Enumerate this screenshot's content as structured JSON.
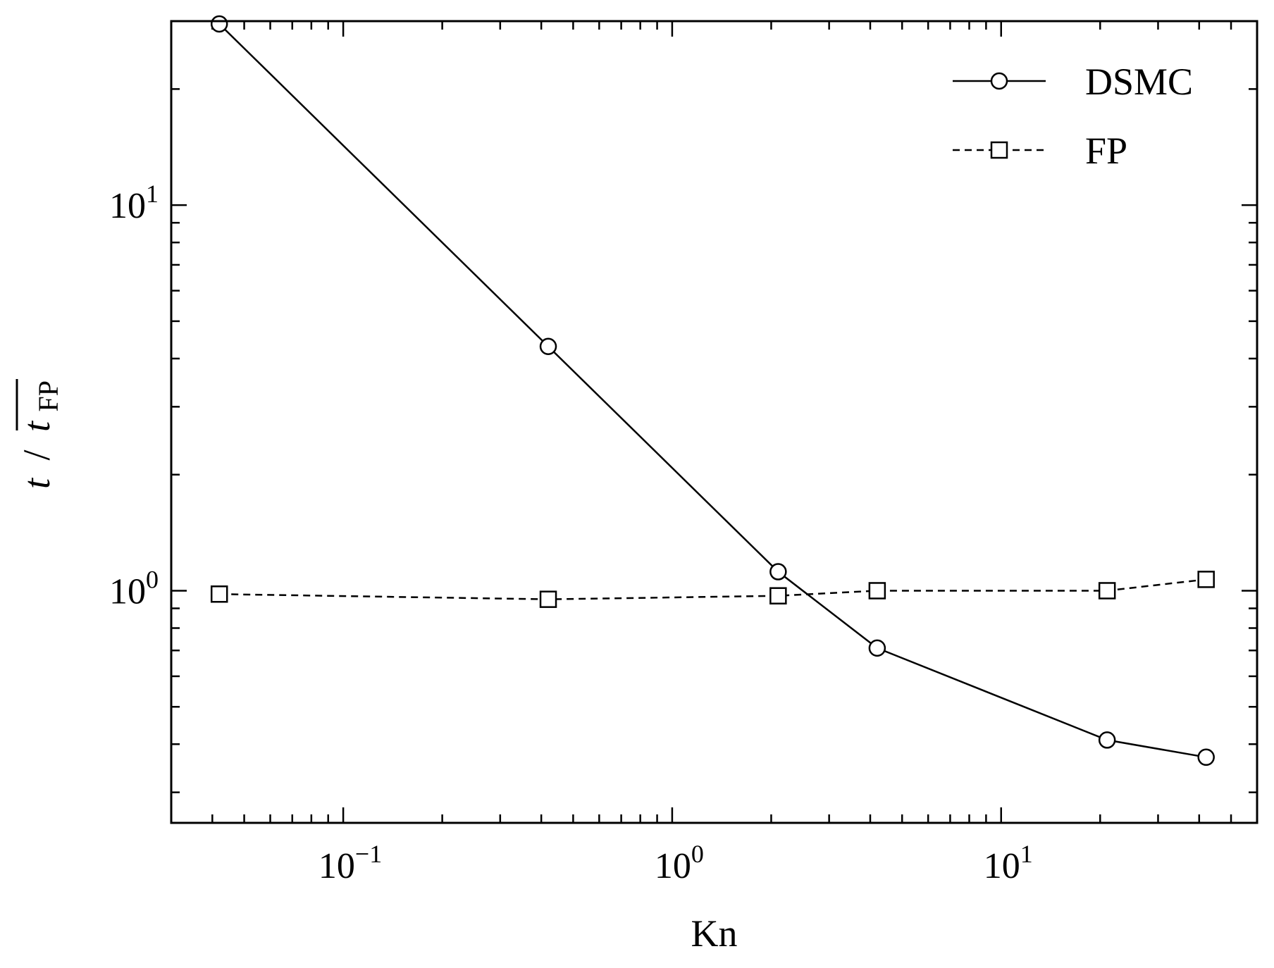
{
  "chart_data": {
    "type": "line",
    "xlabel": "Kn",
    "ylabel": {
      "prefix": "t",
      "separator": "/",
      "base": "t",
      "subscript": "FP"
    },
    "x_scale": "log",
    "y_scale": "log",
    "xlim": [
      0.03,
      60
    ],
    "ylim": [
      0.25,
      30
    ],
    "x_ticks": [
      {
        "value": 0.1,
        "base": "10",
        "exp": "−1"
      },
      {
        "value": 1,
        "base": "10",
        "exp": "0"
      },
      {
        "value": 10,
        "base": "10",
        "exp": "1"
      }
    ],
    "y_ticks": [
      {
        "value": 1,
        "base": "10",
        "exp": "0"
      },
      {
        "value": 10,
        "base": "10",
        "exp": "1"
      }
    ],
    "grid": false,
    "legend_position": "top-right",
    "series": [
      {
        "name": "DSMC",
        "line_style": "solid",
        "marker": "circle",
        "color": "#000000",
        "x": [
          0.042,
          0.42,
          2.1,
          4.2,
          21,
          42
        ],
        "y": [
          29.5,
          4.3,
          1.12,
          0.71,
          0.41,
          0.37
        ]
      },
      {
        "name": "FP",
        "line_style": "dashed",
        "marker": "square",
        "color": "#000000",
        "x": [
          0.042,
          0.42,
          2.1,
          4.2,
          21,
          42
        ],
        "y": [
          0.98,
          0.95,
          0.97,
          1.0,
          1.0,
          1.07
        ]
      }
    ]
  }
}
